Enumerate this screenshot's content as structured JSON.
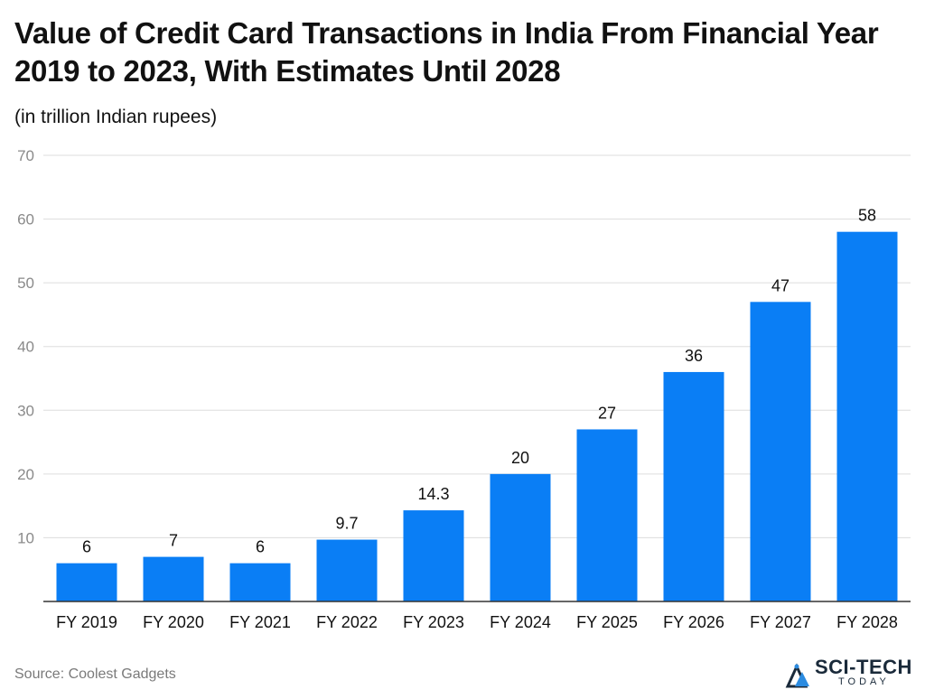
{
  "header": {
    "title": "Value of Credit Card Transactions in India From Financial Year 2019 to 2023, With Estimates Until 2028",
    "subtitle": "(in trillion Indian rupees)"
  },
  "footer": {
    "source": "Source: Coolest Gadgets",
    "logo_main": "SCI-TECH",
    "logo_sub": "TODAY"
  },
  "colors": {
    "bar": "#0a7ef5",
    "grid": "#dddddd",
    "axis": "#333333",
    "tick_label": "#8a8a8a"
  },
  "chart_data": {
    "type": "bar",
    "title": "Value of Credit Card Transactions in India From Financial Year 2019 to 2023, With Estimates Until 2028",
    "subtitle": "(in trillion Indian rupees)",
    "categories": [
      "FY 2019",
      "FY 2020",
      "FY 2021",
      "FY 2022",
      "FY 2023",
      "FY 2024",
      "FY 2025",
      "FY 2026",
      "FY 2027",
      "FY 2028"
    ],
    "values": [
      6,
      7,
      6,
      9.7,
      14.3,
      20,
      27,
      36,
      47,
      58
    ],
    "value_labels": [
      "6",
      "7",
      "6",
      "9.7",
      "14.3",
      "20",
      "27",
      "36",
      "47",
      "58"
    ],
    "ylim": [
      0,
      70
    ],
    "yticks": [
      10,
      20,
      30,
      40,
      50,
      60,
      70
    ],
    "grid": true,
    "xlabel": "",
    "ylabel": ""
  }
}
